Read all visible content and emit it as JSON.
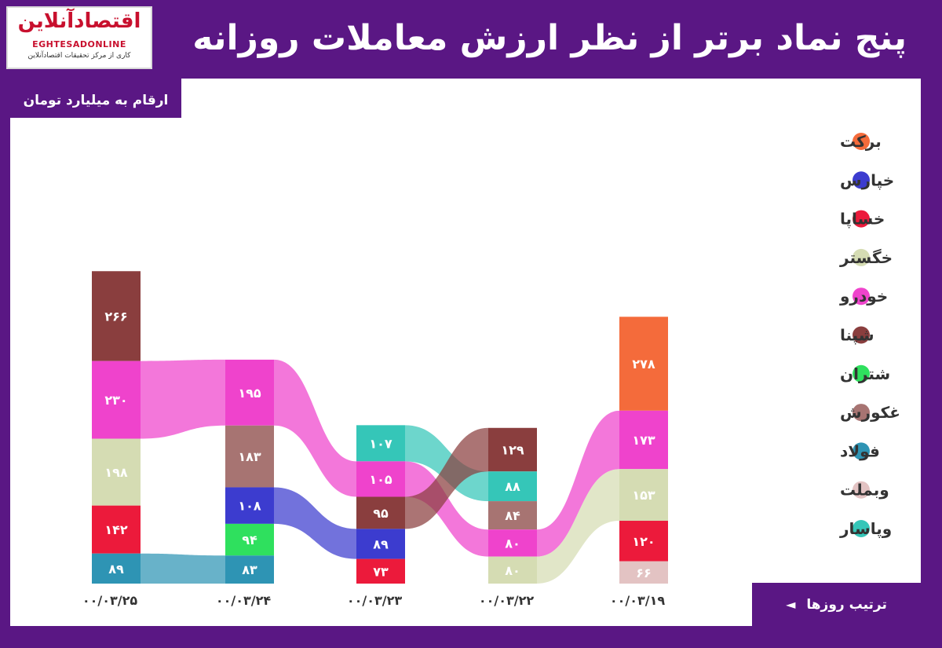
{
  "header": {
    "title": "پنج نماد برتر از نظر ارزش معاملات روزانه"
  },
  "logo": {
    "main": "اقتصادآنلاین",
    "latin": "EGHTESADONLINE",
    "sub": "کاری از مرکز تحقیقات اقتصادآنلاین"
  },
  "unit_note": "ارقام به میلیارد تومان",
  "order_note": "ترتیب روزها",
  "order_arrow": "◄",
  "chart_data": {
    "type": "bar",
    "stacked": true,
    "categories": [
      "۰۰/۰۳/۲۵",
      "۰۰/۰۳/۲۴",
      "۰۰/۰۳/۲۳",
      "۰۰/۰۳/۲۲",
      "۰۰/۰۳/۱۹"
    ],
    "series": [
      {
        "name": "برکت",
        "color": "#f46b3b"
      },
      {
        "name": "خپارس",
        "color": "#3c3ccf"
      },
      {
        "name": "خساپا",
        "color": "#ec1a3b"
      },
      {
        "name": "خگستر",
        "color": "#d5dcb3"
      },
      {
        "name": "خودرو",
        "color": "#ef43cc"
      },
      {
        "name": "شپنا",
        "color": "#8a3e3e"
      },
      {
        "name": "شتران",
        "color": "#2fe05e"
      },
      {
        "name": "غکورش",
        "color": "#a77472"
      },
      {
        "name": "فولاد",
        "color": "#2e94b4"
      },
      {
        "name": "وبملت",
        "color": "#e3c3c3"
      },
      {
        "name": "وپاسار",
        "color": "#35c6b8"
      }
    ],
    "stacks": [
      [
        {
          "series": "شپنا",
          "value": 266,
          "label": "۲۶۶"
        },
        {
          "series": "خودرو",
          "value": 230,
          "label": "۲۳۰"
        },
        {
          "series": "خگستر",
          "value": 198,
          "label": "۱۹۸"
        },
        {
          "series": "خساپا",
          "value": 142,
          "label": "۱۴۲"
        },
        {
          "series": "فولاد",
          "value": 89,
          "label": "۸۹"
        }
      ],
      [
        {
          "series": "خودرو",
          "value": 195,
          "label": "۱۹۵"
        },
        {
          "series": "غکورش",
          "value": 183,
          "label": "۱۸۳"
        },
        {
          "series": "خپارس",
          "value": 108,
          "label": "۱۰۸"
        },
        {
          "series": "شتران",
          "value": 94,
          "label": "۹۴"
        },
        {
          "series": "فولاد",
          "value": 83,
          "label": "۸۳"
        }
      ],
      [
        {
          "series": "وپاسار",
          "value": 107,
          "label": "۱۰۷"
        },
        {
          "series": "خودرو",
          "value": 105,
          "label": "۱۰۵"
        },
        {
          "series": "شپنا",
          "value": 95,
          "label": "۹۵"
        },
        {
          "series": "خپارس",
          "value": 89,
          "label": "۸۹"
        },
        {
          "series": "خساپا",
          "value": 73,
          "label": "۷۳"
        }
      ],
      [
        {
          "series": "شپنا",
          "value": 129,
          "label": "۱۲۹"
        },
        {
          "series": "وپاسار",
          "value": 88,
          "label": "۸۸"
        },
        {
          "series": "غکورش",
          "value": 84,
          "label": "۸۴"
        },
        {
          "series": "خودرو",
          "value": 80,
          "label": "۸۰"
        },
        {
          "series": "خگستر",
          "value": 80,
          "label": "۸۰"
        }
      ],
      [
        {
          "series": "برکت",
          "value": 278,
          "label": "۲۷۸"
        },
        {
          "series": "خودرو",
          "value": 173,
          "label": "۱۷۳"
        },
        {
          "series": "خگستر",
          "value": 153,
          "label": "۱۵۳"
        },
        {
          "series": "خساپا",
          "value": 120,
          "label": "۱۲۰"
        },
        {
          "series": "وبملت",
          "value": 66,
          "label": "۶۶"
        }
      ]
    ],
    "legend": "right"
  }
}
